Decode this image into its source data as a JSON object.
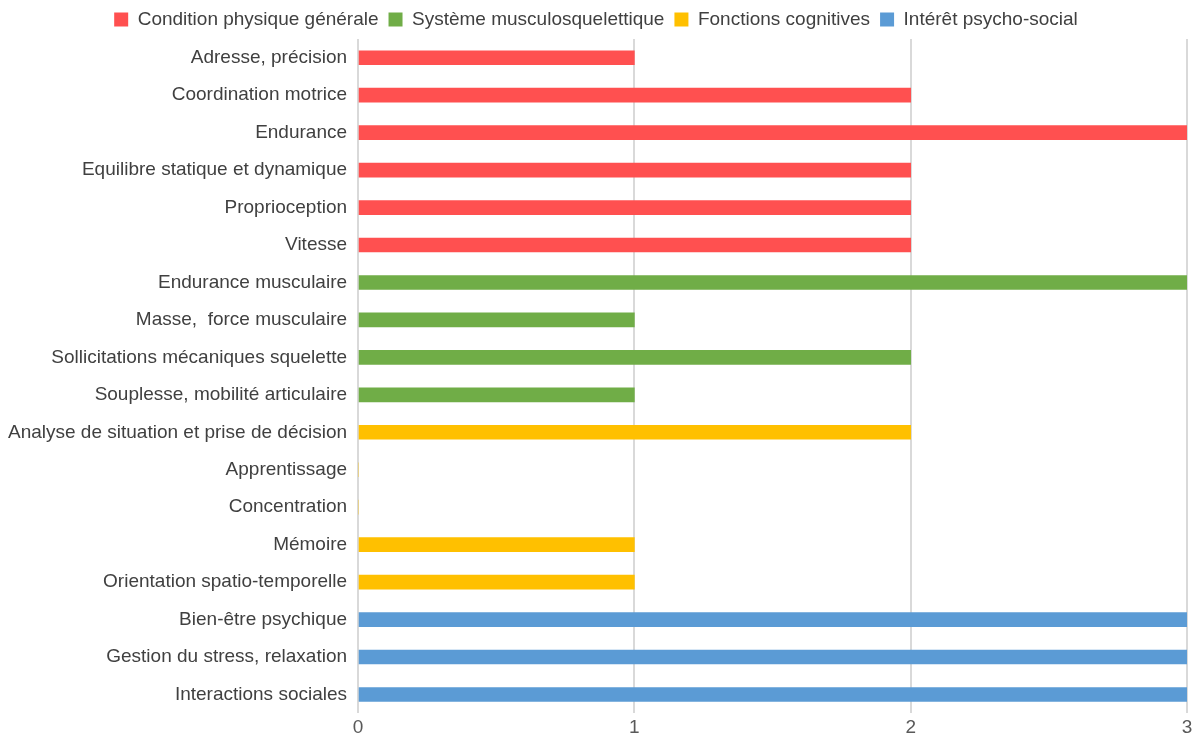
{
  "chart_data": {
    "type": "bar",
    "orientation": "horizontal",
    "categories": [
      "Adresse, précision",
      "Coordination motrice",
      "Endurance",
      "Equilibre statique et dynamique",
      "Proprioception",
      "Vitesse",
      "Endurance musculaire",
      "Masse,  force musculaire",
      "Sollicitations mécaniques squelette",
      "Souplesse, mobilité articulaire",
      "Analyse de situation et prise de décision",
      "Apprentissage",
      "Concentration",
      "Mémoire",
      "Orientation spatio-temporelle",
      "Bien-être psychique",
      "Gestion du stress, relaxation",
      "Interactions sociales"
    ],
    "series": [
      {
        "name": "Condition physique générale",
        "color": "#ff5050",
        "values": [
          1,
          2,
          3,
          2,
          2,
          2,
          null,
          null,
          null,
          null,
          null,
          null,
          null,
          null,
          null,
          null,
          null,
          null
        ]
      },
      {
        "name": "Système musculosquelettique",
        "color": "#70ad47",
        "values": [
          null,
          null,
          null,
          null,
          null,
          null,
          3,
          1,
          2,
          1,
          null,
          null,
          null,
          null,
          null,
          null,
          null,
          null
        ]
      },
      {
        "name": "Fonctions cognitives",
        "color": "#ffc000",
        "values": [
          null,
          null,
          null,
          null,
          null,
          null,
          null,
          null,
          null,
          null,
          2,
          0,
          0,
          1,
          1,
          null,
          null,
          null
        ]
      },
      {
        "name": "Intérêt psycho-social",
        "color": "#5b9bd5",
        "values": [
          null,
          null,
          null,
          null,
          null,
          null,
          null,
          null,
          null,
          null,
          null,
          null,
          null,
          null,
          null,
          3,
          3,
          3
        ]
      }
    ],
    "xlim": [
      0,
      3
    ],
    "xticks": [
      0,
      1,
      2,
      3
    ],
    "grid": "x",
    "legend": "top"
  }
}
